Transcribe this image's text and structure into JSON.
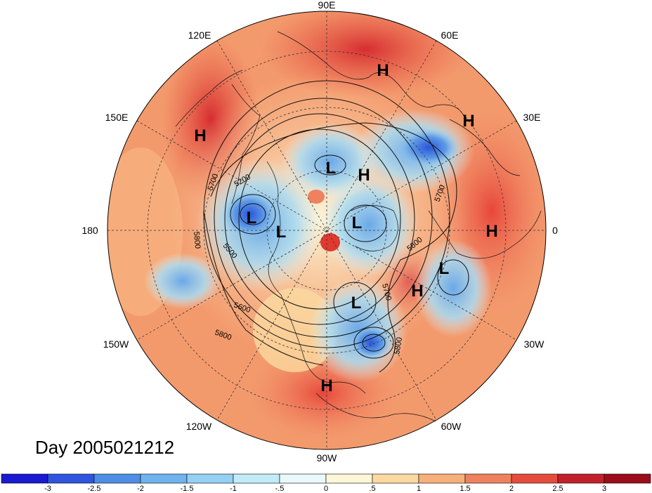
{
  "title": "Day 2005021212",
  "longitude_labels": [
    "90E",
    "60E",
    "30E",
    "0",
    "30W",
    "60W",
    "90W",
    "120W",
    "150W",
    "180",
    "150E",
    "120E"
  ],
  "pressure_centers": [
    "H",
    "H",
    "H",
    "H",
    "H",
    "H",
    "H",
    "L",
    "L",
    "L",
    "L",
    "L",
    "L"
  ],
  "contour_labels": [
    "5700",
    "5200",
    "5800",
    "5500",
    "5600",
    "5800",
    "5700",
    "5800",
    "5700",
    "5800"
  ],
  "colorbar": {
    "ticks": [
      "-3",
      "-2.5",
      "-2",
      "-1.5",
      "-1",
      "-.5",
      "0",
      ".5",
      "1",
      "1.5",
      "2",
      "2.5",
      "3"
    ],
    "colors": [
      "#1a1ad2",
      "#2f55e0",
      "#4f8ee6",
      "#6fb2ee",
      "#94d0f3",
      "#c2ebf8",
      "#e9f9fb",
      "#fdf6d8",
      "#fbd9a0",
      "#f7b07c",
      "#ef815f",
      "#e54c3c",
      "#c4202a",
      "#9c0d1b"
    ]
  }
}
